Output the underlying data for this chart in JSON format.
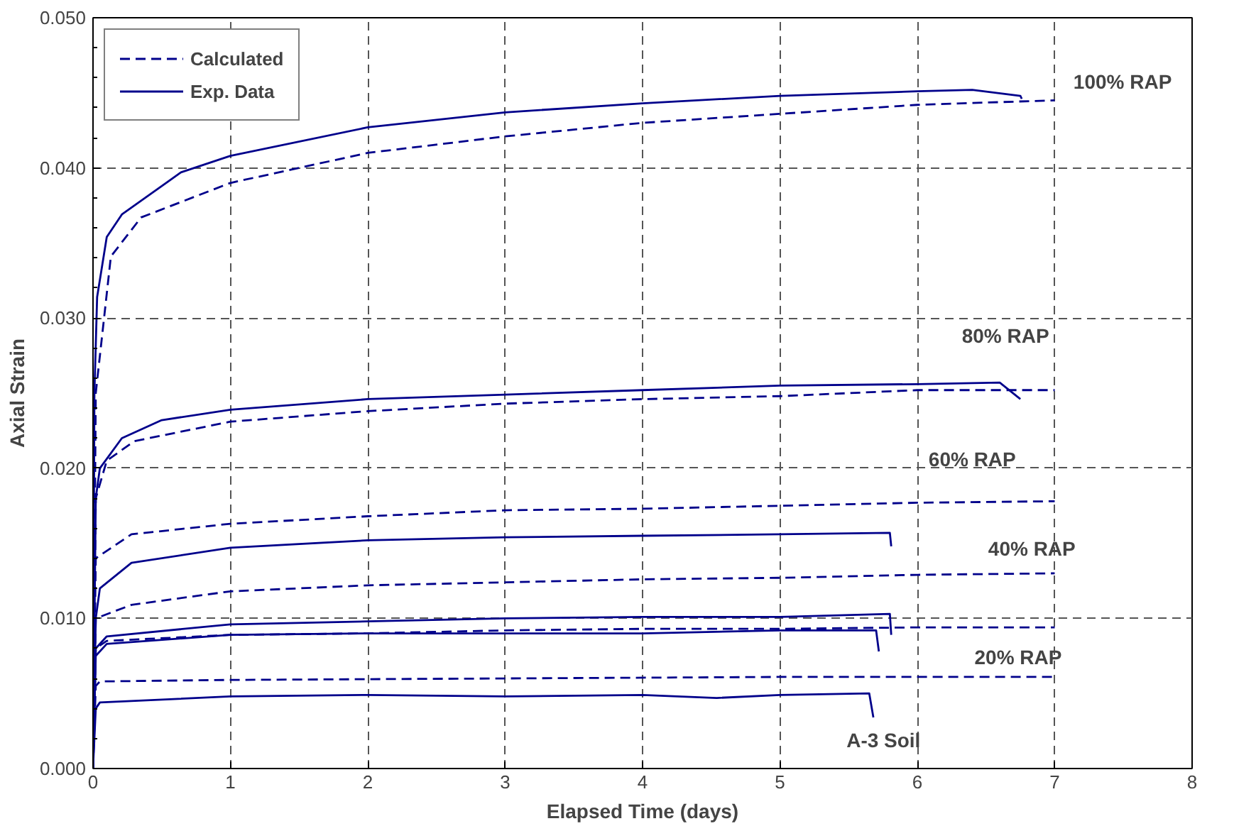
{
  "chart_data": {
    "type": "line",
    "xlabel": "Elapsed Time (days)",
    "ylabel": "Axial Strain",
    "xlim": [
      0,
      8
    ],
    "xticks": [
      0,
      1,
      2,
      3,
      4,
      5,
      6,
      7,
      8
    ],
    "ylim": [
      0,
      0.05
    ],
    "yticks": [
      {
        "value": 0,
        "label": "0.000"
      },
      {
        "value": 0.01,
        "label": "0.010"
      },
      {
        "value": 0.02,
        "label": "0.020"
      },
      {
        "value": 0.03,
        "label": "0.030"
      },
      {
        "value": 0.04,
        "label": "0.040"
      },
      {
        "value": 0.05,
        "label": "0.050"
      }
    ],
    "grid": true,
    "legend": "top left",
    "marker": "none",
    "series": [
      {
        "name": "Calculated",
        "color": "#00008b",
        "line_style": "dashed",
        "x": [
          0,
          0.02,
          0.13,
          0.35,
          1,
          2,
          3,
          4,
          5,
          6,
          7
        ],
        "values": [
          0,
          0.025,
          0.0341,
          0.0367,
          0.039,
          0.041,
          0.0421,
          0.043,
          0.0436,
          0.0442,
          0.0445
        ]
      },
      {
        "name": "Exp. Data",
        "color": "#00008b",
        "line_style": "solid",
        "x": [
          0,
          0.01,
          0.03,
          0.1,
          0.21,
          0.64,
          1,
          2,
          3,
          4,
          5,
          6,
          6.4,
          6.75,
          6.76
        ],
        "values": [
          0,
          0.025,
          0.0314,
          0.0354,
          0.0369,
          0.0397,
          0.0408,
          0.0427,
          0.0437,
          0.0443,
          0.0448,
          0.0451,
          0.0452,
          0.0448,
          0.0446
        ]
      },
      {
        "color": "#00008b",
        "line_style": "dashed",
        "x": [
          0,
          0.02,
          0.1,
          0.3,
          1,
          2,
          3,
          4,
          5,
          6,
          7
        ],
        "values": [
          0,
          0.018,
          0.0205,
          0.0218,
          0.0231,
          0.0238,
          0.0243,
          0.0246,
          0.0248,
          0.0252,
          0.0252
        ]
      },
      {
        "color": "#00008b",
        "line_style": "solid",
        "x": [
          0,
          0.02,
          0.05,
          0.21,
          0.5,
          1,
          2,
          3,
          4,
          5,
          6,
          6.6,
          6.75
        ],
        "values": [
          0,
          0.018,
          0.02,
          0.022,
          0.0232,
          0.0239,
          0.0246,
          0.0249,
          0.0252,
          0.0255,
          0.0256,
          0.0257,
          0.0246
        ]
      },
      {
        "color": "#00008b",
        "line_style": "dashed",
        "x": [
          0,
          0.02,
          0.28,
          1,
          2,
          3,
          4,
          5,
          6,
          7
        ],
        "values": [
          0,
          0.014,
          0.0156,
          0.0163,
          0.0168,
          0.0172,
          0.0173,
          0.0175,
          0.0177,
          0.0178
        ]
      },
      {
        "color": "#00008b",
        "line_style": "solid",
        "x": [
          0,
          0.02,
          0.05,
          0.28,
          1,
          2,
          3,
          4,
          5,
          5.8,
          5.81
        ],
        "values": [
          0,
          0.01,
          0.012,
          0.0137,
          0.0147,
          0.0152,
          0.0154,
          0.0155,
          0.0156,
          0.0157,
          0.0148
        ]
      },
      {
        "color": "#00008b",
        "line_style": "dashed",
        "x": [
          0,
          0.02,
          0.28,
          1,
          2,
          3,
          4,
          5,
          6,
          7
        ],
        "values": [
          0,
          0.01,
          0.0109,
          0.0118,
          0.0122,
          0.0124,
          0.0126,
          0.0127,
          0.0129,
          0.013
        ]
      },
      {
        "color": "#00008b",
        "line_style": "solid",
        "x": [
          0,
          0.02,
          0.1,
          1,
          2,
          3,
          4,
          5,
          5.8,
          5.81
        ],
        "values": [
          0,
          0.008,
          0.0088,
          0.0096,
          0.0098,
          0.01,
          0.0101,
          0.0101,
          0.0103,
          0.0089
        ]
      },
      {
        "color": "#00008b",
        "line_style": "dashed",
        "x": [
          0,
          0.02,
          0.1,
          1,
          2,
          3,
          4,
          5,
          6,
          7
        ],
        "values": [
          0,
          0.008,
          0.0085,
          0.0089,
          0.009,
          0.0092,
          0.0093,
          0.0093,
          0.0094,
          0.0094
        ]
      },
      {
        "color": "#00008b",
        "line_style": "solid",
        "x": [
          0,
          0.02,
          0.1,
          1,
          2,
          3,
          4,
          5,
          5.7,
          5.72
        ],
        "values": [
          0,
          0.0075,
          0.0083,
          0.0089,
          0.009,
          0.009,
          0.009,
          0.0092,
          0.0092,
          0.0078
        ]
      },
      {
        "color": "#00008b",
        "line_style": "dashed",
        "x": [
          0,
          0.02,
          0.05,
          1,
          3,
          5,
          7
        ],
        "values": [
          0,
          0.0055,
          0.0058,
          0.0059,
          0.006,
          0.0061,
          0.0061
        ]
      },
      {
        "color": "#00008b",
        "line_style": "solid",
        "x": [
          0,
          0.02,
          0.05,
          1,
          2,
          3,
          4,
          4.54,
          5,
          5.65,
          5.68
        ],
        "values": [
          0,
          0.004,
          0.0044,
          0.0048,
          0.0049,
          0.0048,
          0.0049,
          0.0047,
          0.0049,
          0.005,
          0.0034
        ]
      }
    ],
    "annotations": [
      "100% RAP",
      "80% RAP",
      "60% RAP",
      "40% RAP",
      "20% RAP",
      "A-3 Soil"
    ]
  }
}
